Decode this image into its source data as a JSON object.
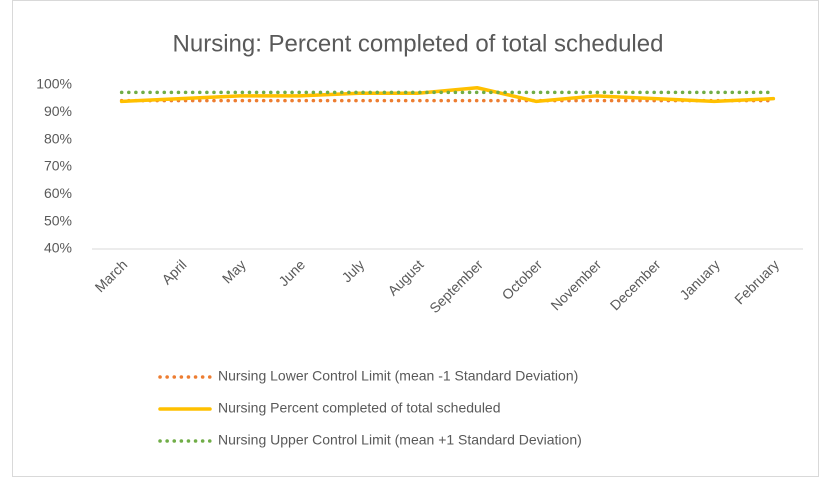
{
  "chart_data": {
    "type": "line",
    "title": "Nursing: Percent completed of total scheduled",
    "categories": [
      "March",
      "April",
      "May",
      "June",
      "July",
      "August",
      "September",
      "October",
      "November",
      "December",
      "January",
      "February"
    ],
    "series": [
      {
        "name": "Nursing Lower Control Limit (mean -1 Standard Deviation)",
        "color": "#ed7d31",
        "style": "dotted",
        "values": [
          94.3,
          94.3,
          94.3,
          94.3,
          94.3,
          94.3,
          94.3,
          94.3,
          94.3,
          94.3,
          94.3,
          94.3
        ]
      },
      {
        "name": "Nursing Percent completed of total scheduled",
        "color": "#ffc000",
        "style": "solid",
        "values": [
          94,
          95,
          96,
          96,
          97,
          97,
          99,
          94,
          96,
          95,
          94,
          95
        ]
      },
      {
        "name": "Nursing Upper Control Limit (mean +1 Standard Deviation)",
        "color": "#70ad47",
        "style": "dotted",
        "values": [
          97.3,
          97.3,
          97.3,
          97.3,
          97.3,
          97.3,
          97.3,
          97.3,
          97.3,
          97.3,
          97.3,
          97.3
        ]
      }
    ],
    "ylim": [
      40,
      100
    ],
    "yticks": [
      {
        "value": 40,
        "label": "40%"
      },
      {
        "value": 50,
        "label": "50%"
      },
      {
        "value": 60,
        "label": "60%"
      },
      {
        "value": 70,
        "label": "70%"
      },
      {
        "value": 80,
        "label": "80%"
      },
      {
        "value": 90,
        "label": "90%"
      },
      {
        "value": 100,
        "label": "100%"
      }
    ],
    "grid": false,
    "legend": "bottom"
  }
}
